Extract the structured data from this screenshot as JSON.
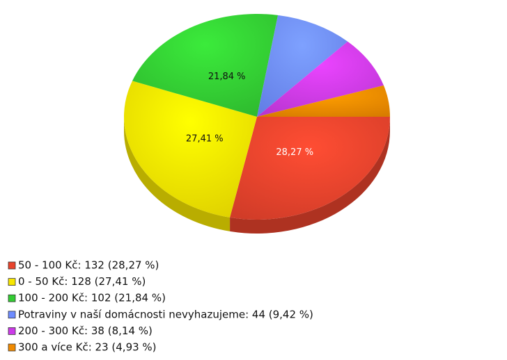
{
  "chart_data": {
    "type": "pie",
    "categories": [
      "50 - 100 Kč",
      "0 - 50 Kč",
      "100 - 200 Kč",
      "Potraviny v naší domácnosti nevyhazujeme",
      "200 - 300 Kč",
      "300 a více Kč"
    ],
    "values": [
      132,
      128,
      102,
      44,
      38,
      23
    ],
    "percentages": [
      28.27,
      27.41,
      21.84,
      9.42,
      8.14,
      4.93
    ],
    "value_labels": [
      "28,27 %",
      "27,41 %",
      "21,84 %",
      null,
      null,
      null
    ],
    "legend_labels": [
      "50 - 100 Kč: 132 (28,27 %)",
      "0 - 50 Kč: 128 (27,41 %)",
      "100 - 200 Kč: 102 (21,84 %)",
      "Potraviny v naší domácnosti nevyhazujeme: 44 (9,42 %)",
      "200 - 300 Kč: 38 (8,14 %)",
      "300 a více Kč: 23 (4,93 %)"
    ],
    "colors": [
      "#e8432c",
      "#f7e600",
      "#33cc33",
      "#6e8cff",
      "#cc3be8",
      "#f08a00"
    ],
    "legend": "bottom-left"
  }
}
